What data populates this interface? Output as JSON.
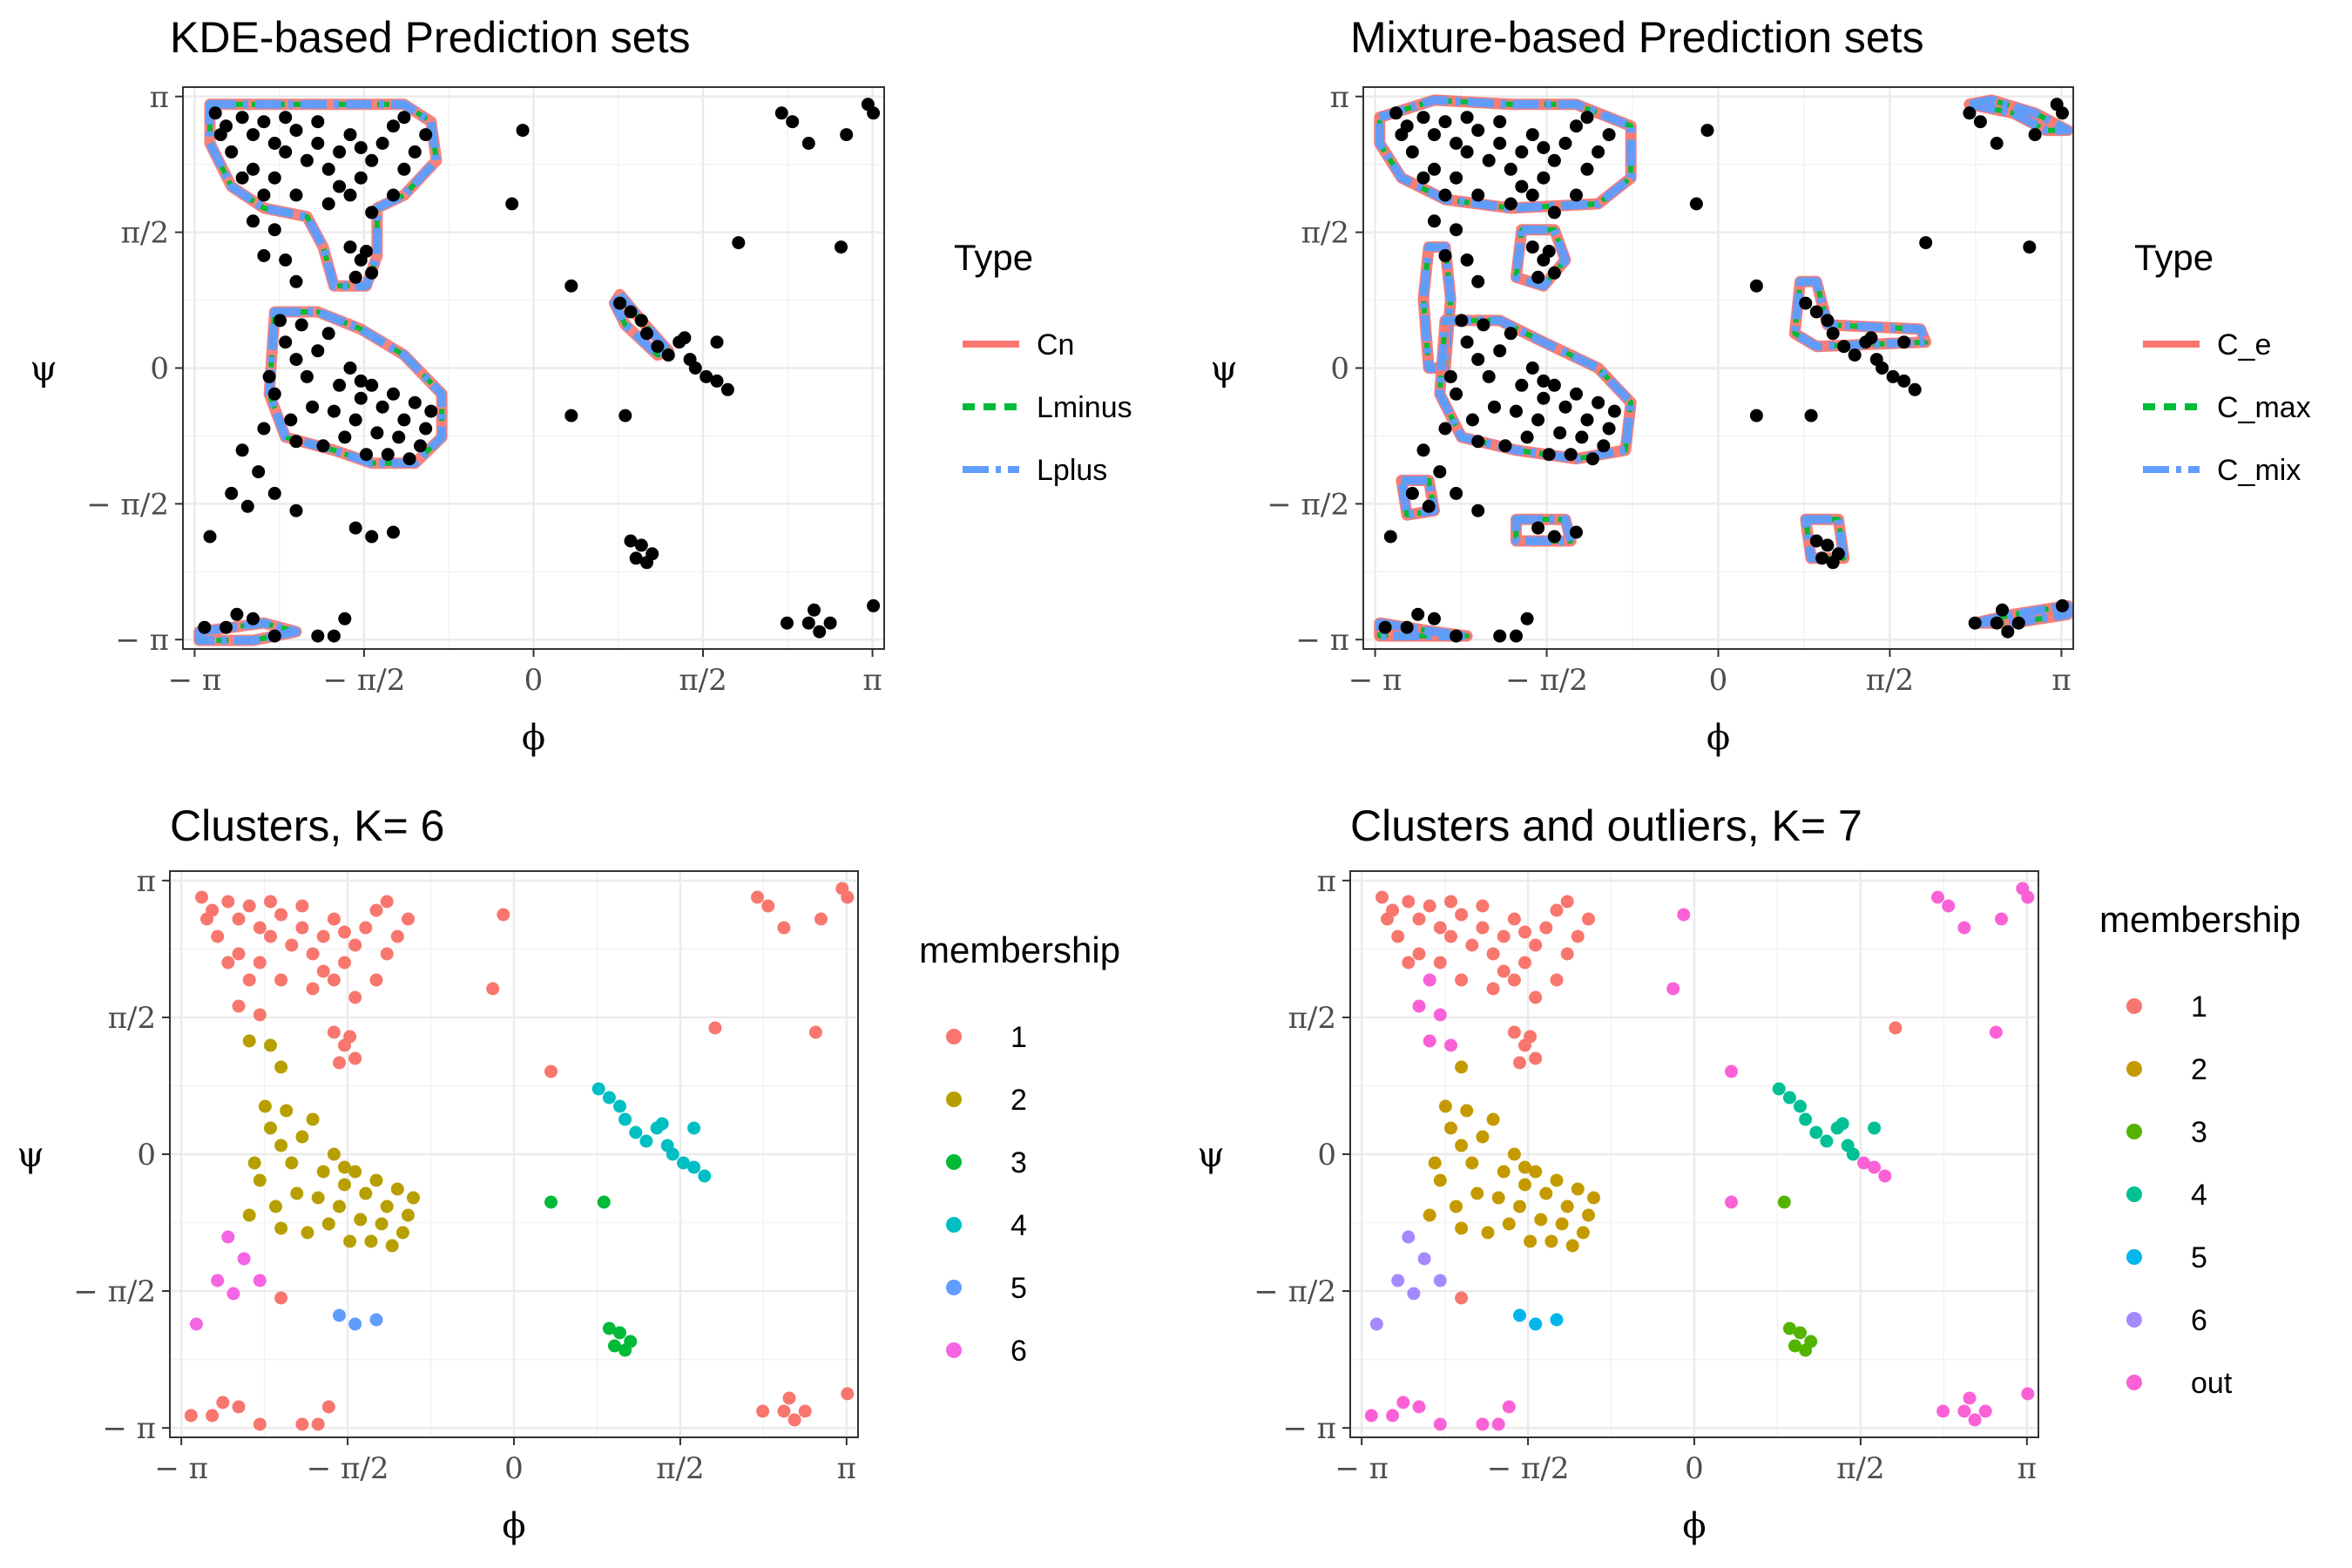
{
  "chart_data": [
    {
      "type": "scatter",
      "title": "KDE-based Prediction sets",
      "xlabel": "ϕ",
      "ylabel": "ψ",
      "xlim": [
        -3.25,
        3.25
      ],
      "ylim": [
        -3.25,
        3.25
      ],
      "xticks": [
        "− π",
        "− π/2",
        "0",
        "π/2",
        "π"
      ],
      "yticks": [
        "− π",
        "− π/2",
        "0",
        "π/2",
        "π"
      ],
      "grid": true,
      "legend": {
        "title": "Type",
        "placement": "right",
        "entries": [
          {
            "label": "Cn",
            "color": "#F8766D",
            "dash": "solid"
          },
          {
            "label": "Lminus",
            "color": "#00BA38",
            "dash": "dashed"
          },
          {
            "label": "Lplus",
            "color": "#619CFF",
            "dash": "dotdash"
          }
        ]
      },
      "series": [
        {
          "name": "points",
          "color": "#000000",
          "points": [
            [
              -2.95,
              2.95
            ],
            [
              -2.85,
              2.8
            ],
            [
              -2.7,
              2.9
            ],
            [
              -2.6,
              2.7
            ],
            [
              -2.5,
              2.85
            ],
            [
              -2.4,
              2.6
            ],
            [
              -2.3,
              2.5
            ],
            [
              -2.2,
              2.75
            ],
            [
              -2.1,
              2.4
            ],
            [
              -2.0,
              2.6
            ],
            [
              -1.9,
              2.3
            ],
            [
              -1.8,
              2.5
            ],
            [
              -1.7,
              2.7
            ],
            [
              -1.6,
              2.2
            ],
            [
              -1.5,
              2.4
            ],
            [
              -1.4,
              2.6
            ],
            [
              -1.3,
              2.8
            ],
            [
              -1.2,
              2.3
            ],
            [
              -1.1,
              2.5
            ],
            [
              -1.0,
              2.7
            ],
            [
              -2.6,
              2.3
            ],
            [
              -2.4,
              2.2
            ],
            [
              -2.2,
              2.0
            ],
            [
              -1.9,
              1.9
            ],
            [
              -1.7,
              2.0
            ],
            [
              -1.5,
              1.8
            ],
            [
              -2.8,
              2.5
            ],
            [
              -2.7,
              2.2
            ],
            [
              -2.5,
              2.0
            ],
            [
              -1.3,
              2.0
            ],
            [
              -1.2,
              2.9
            ],
            [
              -2.9,
              2.7
            ],
            [
              -2.3,
              2.9
            ],
            [
              -2.0,
              2.85
            ],
            [
              -1.8,
              2.1
            ],
            [
              -1.6,
              2.55
            ],
            [
              -1.7,
              1.4
            ],
            [
              -1.6,
              1.25
            ],
            [
              -1.5,
              1.1
            ],
            [
              -1.65,
              1.05
            ],
            [
              -1.55,
              1.35
            ],
            [
              -2.4,
              1.6
            ],
            [
              -2.5,
              1.3
            ],
            [
              -2.3,
              1.25
            ],
            [
              -2.2,
              1.0
            ],
            [
              -2.6,
              1.7
            ],
            [
              -2.35,
              0.55
            ],
            [
              -2.3,
              0.3
            ],
            [
              -2.2,
              0.1
            ],
            [
              -2.1,
              -0.1
            ],
            [
              -2.0,
              0.2
            ],
            [
              -1.9,
              0.4
            ],
            [
              -1.8,
              -0.2
            ],
            [
              -1.7,
              0.0
            ],
            [
              -1.6,
              -0.35
            ],
            [
              -1.5,
              -0.2
            ],
            [
              -1.4,
              -0.45
            ],
            [
              -1.3,
              -0.3
            ],
            [
              -1.2,
              -0.6
            ],
            [
              -1.1,
              -0.4
            ],
            [
              -1.0,
              -0.7
            ],
            [
              -0.95,
              -0.5
            ],
            [
              -1.05,
              -0.9
            ],
            [
              -1.25,
              -0.8
            ],
            [
              -1.45,
              -0.75
            ],
            [
              -1.65,
              -0.6
            ],
            [
              -1.85,
              -0.5
            ],
            [
              -2.05,
              -0.45
            ],
            [
              -2.25,
              -0.6
            ],
            [
              -2.4,
              -0.3
            ],
            [
              -2.45,
              -0.1
            ],
            [
              -2.2,
              -0.85
            ],
            [
              -1.95,
              -0.9
            ],
            [
              -1.75,
              -0.8
            ],
            [
              -1.55,
              -1.0
            ],
            [
              -1.35,
              -1.0
            ],
            [
              -1.15,
              -1.05
            ],
            [
              -2.5,
              -0.7
            ],
            [
              -2.15,
              0.5
            ],
            [
              -1.6,
              -0.15
            ],
            [
              -2.7,
              -0.95
            ],
            [
              -2.55,
              -1.2
            ],
            [
              -2.8,
              -1.45
            ],
            [
              -2.65,
              -1.6
            ],
            [
              -2.4,
              -1.45
            ],
            [
              -2.2,
              -1.65
            ],
            [
              -1.65,
              -1.85
            ],
            [
              -1.5,
              -1.95
            ],
            [
              -1.3,
              -1.9
            ],
            [
              -3.0,
              -1.95
            ],
            [
              -0.2,
              1.9
            ],
            [
              -0.1,
              2.75
            ],
            [
              0.35,
              0.95
            ],
            [
              0.35,
              -0.55
            ],
            [
              0.85,
              -0.55
            ],
            [
              0.8,
              0.75
            ],
            [
              0.9,
              0.65
            ],
            [
              1.0,
              0.55
            ],
            [
              1.05,
              0.4
            ],
            [
              1.15,
              0.25
            ],
            [
              1.25,
              0.15
            ],
            [
              1.35,
              0.3
            ],
            [
              1.45,
              0.1
            ],
            [
              1.5,
              0.0
            ],
            [
              1.6,
              -0.1
            ],
            [
              1.7,
              -0.15
            ],
            [
              1.8,
              -0.25
            ],
            [
              1.4,
              0.35
            ],
            [
              1.7,
              0.3
            ],
            [
              1.9,
              1.45
            ],
            [
              0.9,
              -2.0
            ],
            [
              0.95,
              -2.2
            ],
            [
              1.05,
              -2.25
            ],
            [
              1.1,
              -2.15
            ],
            [
              1.0,
              -2.05
            ],
            [
              2.3,
              2.95
            ],
            [
              2.4,
              2.85
            ],
            [
              2.55,
              2.6
            ],
            [
              2.9,
              2.7
            ],
            [
              3.1,
              3.05
            ],
            [
              3.15,
              2.95
            ],
            [
              2.85,
              1.4
            ],
            [
              -3.05,
              -3.0
            ],
            [
              -2.85,
              -3.0
            ],
            [
              -2.75,
              -2.85
            ],
            [
              -2.6,
              -2.9
            ],
            [
              -2.4,
              -3.1
            ],
            [
              -2.0,
              -3.1
            ],
            [
              -1.85,
              -3.1
            ],
            [
              -1.75,
              -2.9
            ],
            [
              2.35,
              -2.95
            ],
            [
              2.55,
              -2.95
            ],
            [
              2.6,
              -2.8
            ],
            [
              2.65,
              -3.05
            ],
            [
              2.75,
              -2.95
            ],
            [
              3.15,
              -2.75
            ]
          ]
        }
      ]
    },
    {
      "type": "scatter",
      "title": "Mixture-based Prediction sets",
      "xlabel": "ϕ",
      "ylabel": "ψ",
      "xlim": [
        -3.25,
        3.25
      ],
      "ylim": [
        -3.25,
        3.25
      ],
      "xticks": [
        "− π",
        "− π/2",
        "0",
        "π/2",
        "π"
      ],
      "yticks": [
        "− π",
        "− π/2",
        "0",
        "π/2",
        "π"
      ],
      "grid": true,
      "legend": {
        "title": "Type",
        "placement": "right",
        "entries": [
          {
            "label": "C_e",
            "color": "#F8766D",
            "dash": "solid"
          },
          {
            "label": "C_max",
            "color": "#00BA38",
            "dash": "dashed"
          },
          {
            "label": "C_mix",
            "color": "#619CFF",
            "dash": "dotdash"
          }
        ]
      },
      "series": [
        {
          "name": "points",
          "color": "#000000",
          "points": "same-as-panel-1"
        }
      ]
    },
    {
      "type": "scatter",
      "title": "Clusters, K= 6",
      "xlabel": "ϕ",
      "ylabel": "ψ",
      "xlim": [
        -3.25,
        3.25
      ],
      "ylim": [
        -3.25,
        3.25
      ],
      "xticks": [
        "− π",
        "− π/2",
        "0",
        "π/2",
        "π"
      ],
      "yticks": [
        "− π",
        "− π/2",
        "0",
        "π/2",
        "π"
      ],
      "grid": true,
      "legend": {
        "title": "membership",
        "placement": "right",
        "entries": [
          {
            "label": "1",
            "color": "#F8766D"
          },
          {
            "label": "2",
            "color": "#B79F00"
          },
          {
            "label": "3",
            "color": "#00BA38"
          },
          {
            "label": "4",
            "color": "#00BFC4"
          },
          {
            "label": "5",
            "color": "#619CFF"
          },
          {
            "label": "6",
            "color": "#F564E3"
          }
        ]
      },
      "series": [
        {
          "name": "1",
          "color": "#F8766D"
        },
        {
          "name": "2",
          "color": "#B79F00"
        },
        {
          "name": "3",
          "color": "#00BA38"
        },
        {
          "name": "4",
          "color": "#00BFC4"
        },
        {
          "name": "5",
          "color": "#619CFF"
        },
        {
          "name": "6",
          "color": "#F564E3"
        }
      ]
    },
    {
      "type": "scatter",
      "title": "Clusters and outliers, K= 7",
      "xlabel": "ϕ",
      "ylabel": "ψ",
      "xlim": [
        -3.25,
        3.25
      ],
      "ylim": [
        -3.25,
        3.25
      ],
      "xticks": [
        "− π",
        "− π/2",
        "0",
        "π/2",
        "π"
      ],
      "yticks": [
        "− π",
        "− π/2",
        "0",
        "π/2",
        "π"
      ],
      "grid": true,
      "legend": {
        "title": "membership",
        "placement": "right",
        "entries": [
          {
            "label": "1",
            "color": "#F8766D"
          },
          {
            "label": "2",
            "color": "#C49A00"
          },
          {
            "label": "3",
            "color": "#53B400"
          },
          {
            "label": "4",
            "color": "#00C094"
          },
          {
            "label": "5",
            "color": "#00B6EB"
          },
          {
            "label": "6",
            "color": "#A58AFF"
          },
          {
            "label": "out",
            "color": "#FB61D7"
          }
        ]
      },
      "series": [
        {
          "name": "1",
          "color": "#F8766D"
        },
        {
          "name": "2",
          "color": "#C49A00"
        },
        {
          "name": "3",
          "color": "#53B400"
        },
        {
          "name": "4",
          "color": "#00C094"
        },
        {
          "name": "5",
          "color": "#00B6EB"
        },
        {
          "name": "6",
          "color": "#A58AFF"
        },
        {
          "name": "out",
          "color": "#FB61D7"
        }
      ]
    }
  ]
}
